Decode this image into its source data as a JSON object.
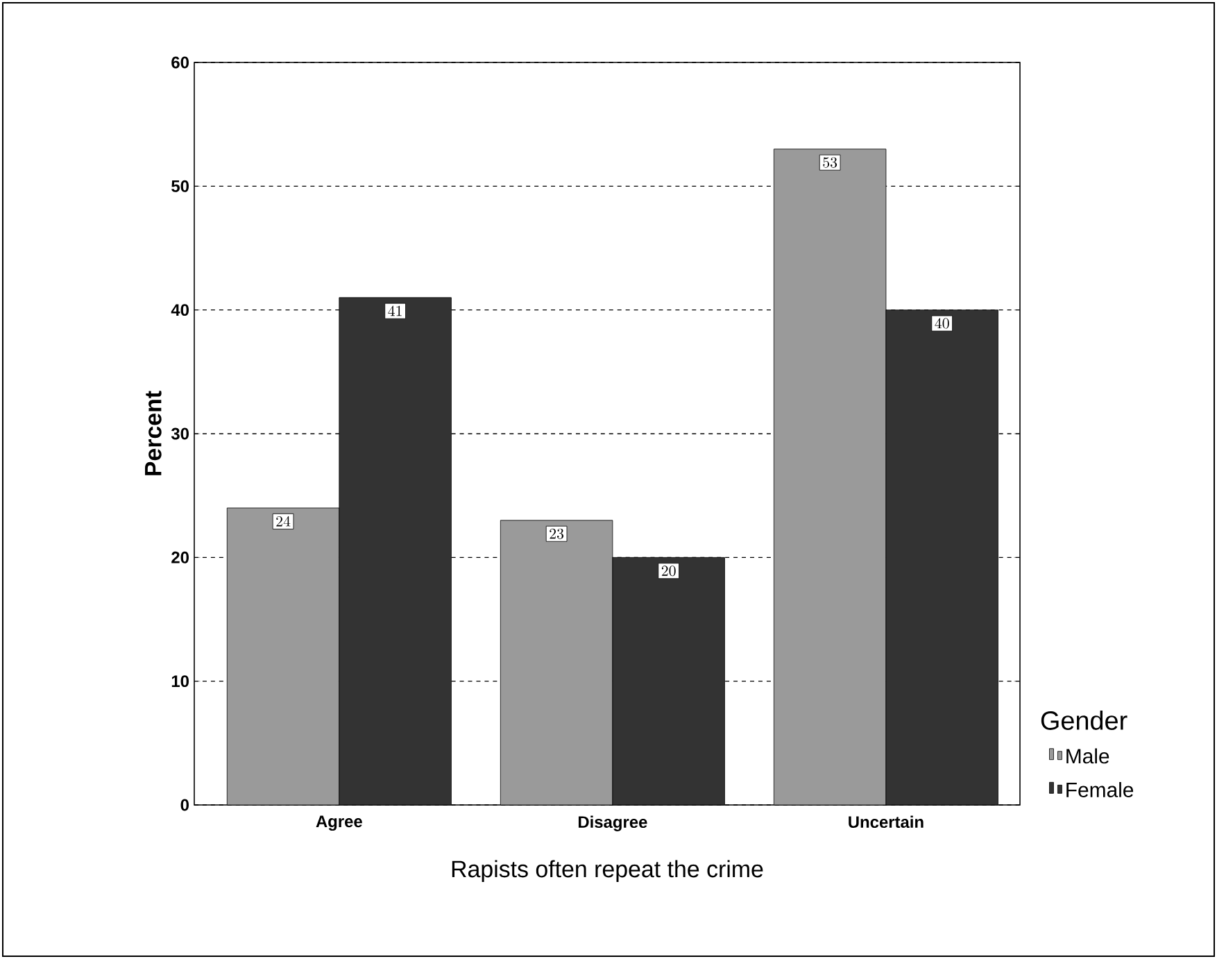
{
  "chart_data": {
    "type": "bar",
    "xlabel": "Rapists often repeat the crime",
    "ylabel": "Percent",
    "legend_title": "Gender",
    "categories": [
      "Agree",
      "Disagree",
      "Uncertain"
    ],
    "series": [
      {
        "name": "Male",
        "color": "#9a9a9a",
        "values": [
          24,
          23,
          53
        ]
      },
      {
        "name": "Female",
        "color": "#333333",
        "values": [
          41,
          20,
          40
        ]
      }
    ],
    "ylim": [
      0,
      60
    ],
    "yticks": [
      0,
      10,
      20,
      30,
      40,
      50,
      60
    ],
    "grid": "y",
    "legend": "right",
    "data_labels": true
  }
}
